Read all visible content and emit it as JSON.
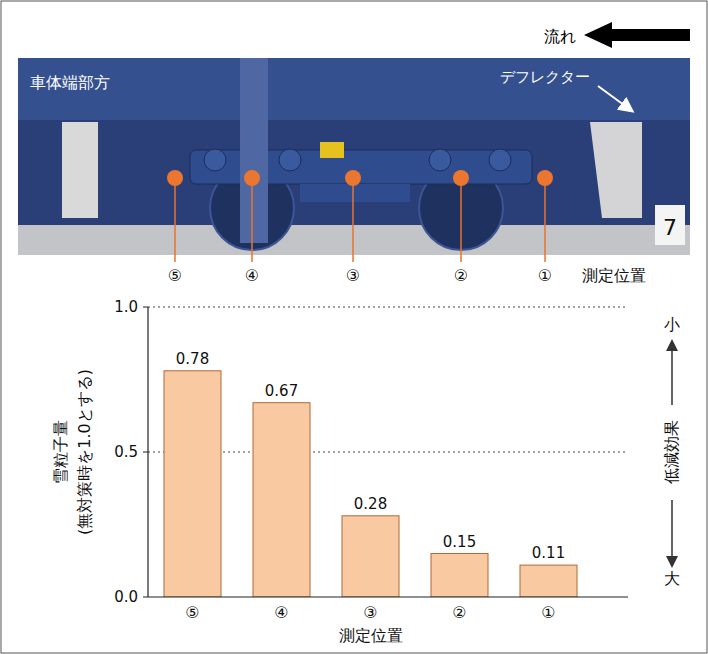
{
  "photo": {
    "flow_label": "流れ",
    "car_end_label": "車体端部方",
    "deflector_label": "デフレクター",
    "marker_label": "7",
    "positions": [
      "⑤",
      "④",
      "③",
      "②",
      "①"
    ],
    "positions_label": "測定位置"
  },
  "chart_data": {
    "type": "bar",
    "ylabel": [
      "雪粒子量",
      "(無対策時を1.0とする)"
    ],
    "xlabel": "測定位置",
    "categories": [
      "⑤",
      "④",
      "③",
      "②",
      "①"
    ],
    "values": [
      0.78,
      0.67,
      0.28,
      0.15,
      0.11
    ],
    "color": "#f9c9a2",
    "ylim": [
      0,
      1
    ],
    "yticks": [
      {
        "value": 0,
        "label": "0.0"
      },
      0.5,
      {
        "value": 1,
        "label": "1.0"
      }
    ],
    "grid": true,
    "data_labels": true,
    "reduction_axis": {
      "top": "小",
      "label": "低減効果",
      "bottom": "大"
    }
  }
}
